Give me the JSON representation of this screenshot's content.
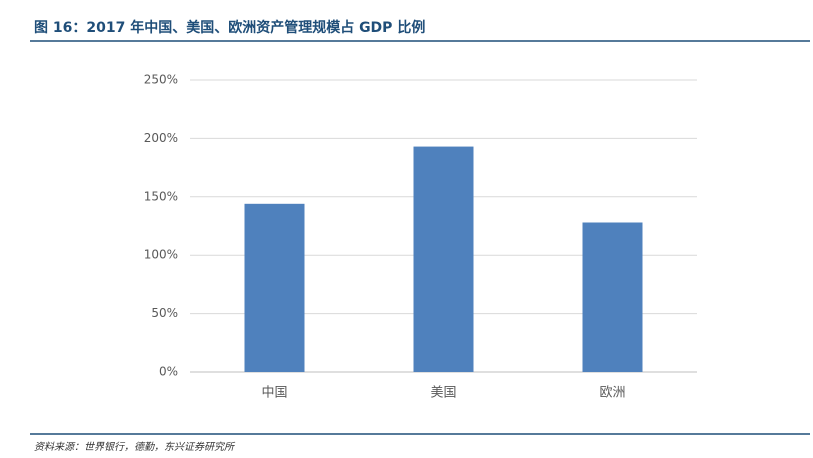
{
  "chart_data": {
    "type": "bar",
    "title": "图 16：2017 年中国、美国、欧洲资产管理规模占 GDP 比例",
    "categories": [
      "中国",
      "美国",
      "欧洲"
    ],
    "values": [
      144,
      193,
      128
    ],
    "color": "#4f81bd",
    "ylim": [
      0,
      250
    ],
    "yticks": [
      {
        "value": 0,
        "label": "0%"
      },
      {
        "value": 50,
        "label": "50%"
      },
      {
        "value": 100,
        "label": "100%"
      },
      {
        "value": 150,
        "label": "150%"
      },
      {
        "value": 200,
        "label": "200%"
      },
      {
        "value": 250,
        "label": "250%"
      }
    ],
    "grid": true,
    "source": "资料来源：世界银行，德勤，东兴证券研究所"
  }
}
